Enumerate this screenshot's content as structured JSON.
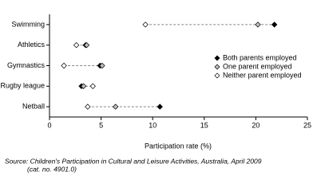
{
  "chart_data": {
    "type": "dot",
    "categories": [
      "Swimming",
      "Athletics",
      "Gymnastics",
      "Rugby league",
      "Netball"
    ],
    "series": [
      {
        "name": "Both parents employed",
        "color": "#000000",
        "values": [
          21.8,
          3.5,
          4.9,
          3.1,
          10.7
        ]
      },
      {
        "name": "One parent employed",
        "color": "#bfbfbf",
        "values": [
          20.2,
          3.6,
          5.1,
          3.3,
          6.4
        ]
      },
      {
        "name": "Neither parent employed",
        "color": "#ffffff",
        "values": [
          9.3,
          2.6,
          1.4,
          4.2,
          3.7
        ]
      }
    ],
    "xlim": [
      0,
      25
    ],
    "xticks": [
      0,
      5,
      10,
      15,
      20,
      25
    ],
    "xlabel": "Participation rate (%)",
    "legend": "right",
    "source": [
      "Source: Children's Participation in Cultural and Leisure Activities, Australia, April 2009",
      "(cat. no. 4901.0)"
    ]
  }
}
